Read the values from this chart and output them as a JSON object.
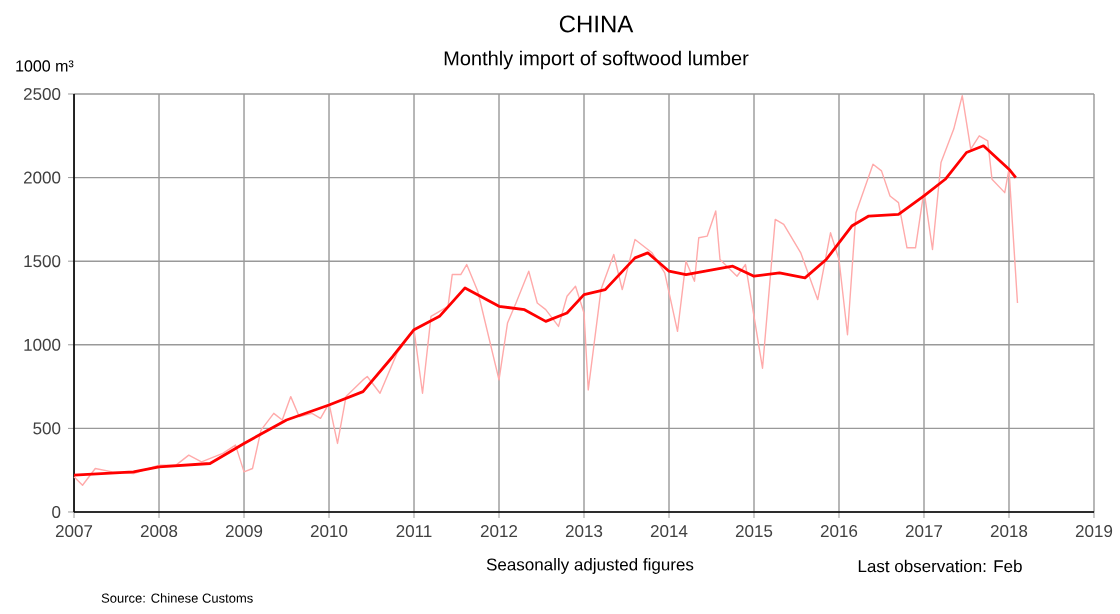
{
  "chart_data": {
    "type": "line",
    "title": "CHINA",
    "subtitle": "Monthly import of softwood lumber",
    "ylabel": "1000 m³",
    "annotations": [
      "Seasonally adjusted figures",
      "Last observation: Feb",
      "Source: Chinese Customs"
    ],
    "xlim": [
      2007,
      2019
    ],
    "xticks": [
      2007,
      2008,
      2009,
      2010,
      2011,
      2012,
      2013,
      2014,
      2015,
      2016,
      2017,
      2018,
      2019
    ],
    "ylim": [
      0,
      2500
    ],
    "yticks": [
      0,
      500,
      1000,
      1500,
      2000,
      2500
    ],
    "grid": true,
    "marker": "none",
    "line_style": "solid",
    "series": [
      {
        "color": "#ffaaaa",
        "x": [
          2007.0,
          2007.1,
          2007.25,
          2007.45,
          2007.7,
          2008.0,
          2008.2,
          2008.35,
          2008.5,
          2008.75,
          2008.9,
          2009.0,
          2009.1,
          2009.2,
          2009.35,
          2009.45,
          2009.55,
          2009.65,
          2009.8,
          2009.9,
          2010.0,
          2010.1,
          2010.2,
          2010.4,
          2010.45,
          2010.6,
          2010.8,
          2011.0,
          2011.1,
          2011.2,
          2011.4,
          2011.45,
          2011.55,
          2011.62,
          2011.75,
          2012.0,
          2012.1,
          2012.2,
          2012.35,
          2012.45,
          2012.55,
          2012.7,
          2012.8,
          2012.9,
          2013.0,
          2013.05,
          2013.2,
          2013.35,
          2013.45,
          2013.6,
          2013.8,
          2013.95,
          2014.1,
          2014.2,
          2014.3,
          2014.35,
          2014.45,
          2014.55,
          2014.6,
          2014.8,
          2014.9,
          2015.1,
          2015.25,
          2015.35,
          2015.55,
          2015.75,
          2015.9,
          2016.0,
          2016.1,
          2016.2,
          2016.4,
          2016.5,
          2016.6,
          2016.7,
          2016.8,
          2016.9,
          2017.0,
          2017.1,
          2017.2,
          2017.35,
          2017.45,
          2017.55,
          2017.65,
          2017.75,
          2017.8,
          2017.95,
          2018.0,
          2018.1
        ],
        "values": [
          210,
          160,
          260,
          240,
          230,
          280,
          280,
          340,
          300,
          350,
          400,
          240,
          260,
          490,
          590,
          550,
          690,
          570,
          590,
          560,
          650,
          410,
          690,
          790,
          810,
          710,
          950,
          1090,
          710,
          1170,
          1230,
          1420,
          1420,
          1480,
          1320,
          790,
          1130,
          1250,
          1440,
          1250,
          1210,
          1110,
          1290,
          1350,
          1190,
          730,
          1330,
          1540,
          1330,
          1630,
          1550,
          1430,
          1080,
          1500,
          1380,
          1640,
          1650,
          1800,
          1510,
          1410,
          1480,
          860,
          1750,
          1720,
          1550,
          1270,
          1670,
          1510,
          1060,
          1790,
          2080,
          2040,
          1890,
          1850,
          1580,
          1580,
          1920,
          1570,
          2090,
          2290,
          2490,
          2170,
          2250,
          2220,
          1990,
          1910,
          2050,
          1250
        ]
      },
      {
        "color": "#ff0000",
        "x": [
          2007.0,
          2007.7,
          2008.0,
          2008.6,
          2009.0,
          2009.5,
          2010.0,
          2010.4,
          2010.75,
          2011.0,
          2011.3,
          2011.6,
          2012.0,
          2012.3,
          2012.55,
          2012.8,
          2013.0,
          2013.25,
          2013.6,
          2013.75,
          2014.0,
          2014.2,
          2014.75,
          2015.0,
          2015.3,
          2015.6,
          2015.85,
          2016.15,
          2016.35,
          2016.7,
          2017.0,
          2017.25,
          2017.5,
          2017.7,
          2018.0,
          2018.08
        ],
        "values": [
          220,
          240,
          270,
          290,
          410,
          550,
          640,
          720,
          930,
          1090,
          1170,
          1340,
          1230,
          1210,
          1140,
          1190,
          1300,
          1330,
          1520,
          1550,
          1440,
          1420,
          1470,
          1410,
          1430,
          1400,
          1510,
          1710,
          1770,
          1780,
          1890,
          1990,
          2150,
          2190,
          2050,
          2000
        ]
      }
    ]
  }
}
